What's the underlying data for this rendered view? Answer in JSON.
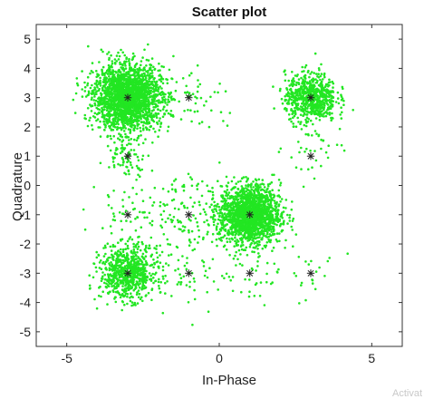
{
  "watermark_text": "Activat",
  "chart_data": {
    "type": "scatter",
    "title": "Scatter plot",
    "xlabel": "In-Phase",
    "ylabel": "Quadrature",
    "xlim": [
      -6,
      6
    ],
    "ylim": [
      -5.5,
      5.5
    ],
    "x_ticks": [
      -5,
      0,
      5
    ],
    "x_tick_labels": [
      "-5",
      "0",
      "5"
    ],
    "y_ticks": [
      5,
      4,
      3,
      2,
      1,
      0,
      -1,
      -2,
      -3,
      -4,
      -5
    ],
    "y_tick_labels": [
      "5",
      "4",
      "3",
      "2",
      "1",
      "0",
      "-1",
      "-2",
      "-3",
      "-4",
      "-5"
    ],
    "grid": false,
    "point_color": "#22e622",
    "marker_color": "#222222",
    "clusters": [
      {
        "center": [
          -3,
          3
        ],
        "spread": 0.55,
        "count": 2200
      },
      {
        "center": [
          1,
          -1
        ],
        "spread": 0.5,
        "count": 1700
      },
      {
        "center": [
          3,
          3
        ],
        "spread": 0.42,
        "count": 700
      },
      {
        "center": [
          -3,
          -3
        ],
        "spread": 0.45,
        "count": 750
      },
      {
        "center": [
          -3,
          1
        ],
        "spread": 0.35,
        "count": 80
      },
      {
        "center": [
          -1,
          -1
        ],
        "spread": 0.7,
        "count": 120
      },
      {
        "center": [
          -1,
          3
        ],
        "spread": 0.6,
        "count": 60
      },
      {
        "center": [
          -1,
          -3
        ],
        "spread": 0.6,
        "count": 50
      },
      {
        "center": [
          -3,
          -1
        ],
        "spread": 0.6,
        "count": 60
      },
      {
        "center": [
          1,
          -3
        ],
        "spread": 0.5,
        "count": 40
      },
      {
        "center": [
          3,
          1
        ],
        "spread": 0.5,
        "count": 30
      },
      {
        "center": [
          3,
          -3
        ],
        "spread": 0.5,
        "count": 20
      }
    ],
    "reference_points": [
      {
        "x": -3,
        "y": 3
      },
      {
        "x": -1,
        "y": 3
      },
      {
        "x": 3,
        "y": 3
      },
      {
        "x": -3,
        "y": 1
      },
      {
        "x": 3,
        "y": 1
      },
      {
        "x": -3,
        "y": -1
      },
      {
        "x": -1,
        "y": -1
      },
      {
        "x": 1,
        "y": -1
      },
      {
        "x": -3,
        "y": -3
      },
      {
        "x": -1,
        "y": -3
      },
      {
        "x": 1,
        "y": -3
      },
      {
        "x": 3,
        "y": -3
      }
    ]
  }
}
